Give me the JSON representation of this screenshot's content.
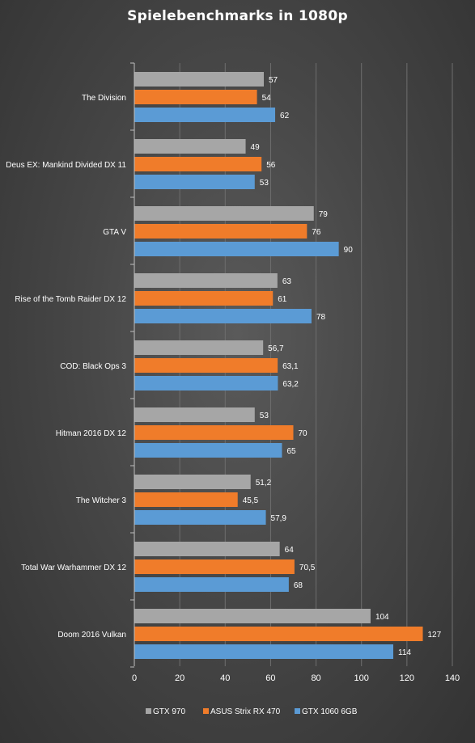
{
  "chart_data": {
    "type": "bar",
    "orientation": "horizontal",
    "title": "Spielebenchmarks in 1080p",
    "xlabel": "",
    "ylabel": "",
    "xlim": [
      0,
      140
    ],
    "x_ticks": [
      0,
      20,
      40,
      60,
      80,
      100,
      120,
      140
    ],
    "grid": true,
    "legend_position": "bottom",
    "categories": [
      "The Division",
      "Deus EX: Mankind Divided DX 11",
      "GTA V",
      "Rise of the Tomb Raider DX 12",
      "COD: Black Ops 3",
      "Hitman 2016 DX 12",
      "The Witcher 3",
      "Total War Warhammer DX 12",
      "Doom 2016 Vulkan"
    ],
    "series": [
      {
        "name": "GTX 970",
        "color": "#a6a6a6",
        "values": [
          57,
          49,
          79,
          63,
          56.7,
          53,
          51.2,
          64,
          104
        ],
        "labels": [
          "57",
          "49",
          "79",
          "63",
          "56,7",
          "53",
          "51,2",
          "64",
          "104"
        ]
      },
      {
        "name": "ASUS Strix RX 470",
        "color": "#f07c2a",
        "values": [
          54,
          56,
          76,
          61,
          63.1,
          70,
          45.5,
          70.5,
          127
        ],
        "labels": [
          "54",
          "56",
          "76",
          "61",
          "63,1",
          "70",
          "45,5",
          "70,5",
          "127"
        ]
      },
      {
        "name": "GTX 1060 6GB",
        "color": "#5b9bd5",
        "values": [
          62,
          53,
          90,
          78,
          63.2,
          65,
          57.9,
          68,
          114
        ],
        "labels": [
          "62",
          "53",
          "90",
          "78",
          "63,2",
          "65",
          "57,9",
          "68",
          "114"
        ]
      }
    ]
  }
}
